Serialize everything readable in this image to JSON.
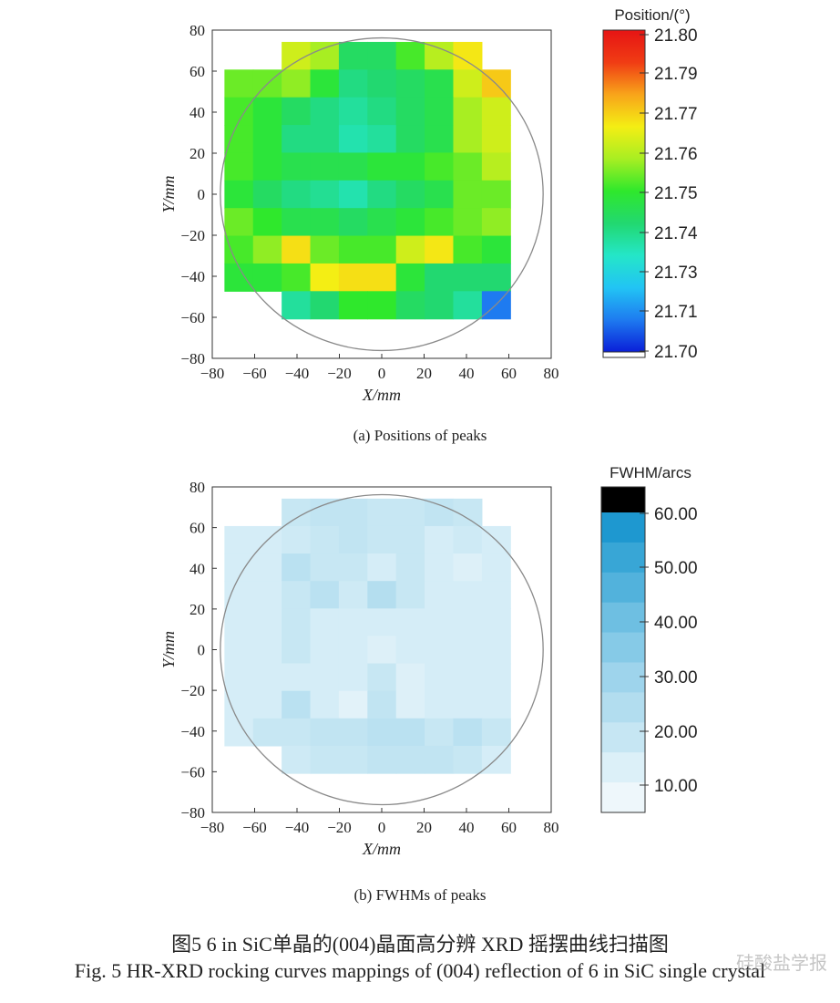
{
  "figure": {
    "caption_a": "(a) Positions of peaks",
    "caption_b": "(b) FWHMs of peaks",
    "caption_cn": "图5  6 in SiC单晶的(004)晶面高分辨 XRD 摇摆曲线扫描图",
    "caption_en": "Fig. 5   HR-XRD rocking curves mappings of (004) reflection of 6 in SiC single crystal",
    "watermark": "硅酸盐学报"
  },
  "chart_data": [
    {
      "type": "heatmap",
      "title": "",
      "xlabel": "X/mm",
      "ylabel": "Y/mm",
      "xlim": [
        -80,
        80
      ],
      "ylim": [
        -80,
        80
      ],
      "xticks": [
        "−80",
        "−60",
        "−40",
        "−20",
        "0",
        "20",
        "40",
        "60",
        "80"
      ],
      "yticks": [
        "80",
        "60",
        "40",
        "20",
        "0",
        "−20",
        "−40",
        "−60",
        "−80"
      ],
      "cell_size_mm": 13.5,
      "grid_x_start": -67.5,
      "grid_y_start": -67.5,
      "columns": 10,
      "rows": 10,
      "wafer_diameter_mm": 152.4,
      "colorbar": {
        "title": "Position/(°)",
        "labels": [
          "21.80",
          "21.79",
          "21.77",
          "21.76",
          "21.75",
          "21.74",
          "21.73",
          "21.71",
          "21.70"
        ],
        "range": [
          21.7,
          21.8
        ],
        "colors": [
          "#0a1fd8",
          "#1e7bf0",
          "#22c4f4",
          "#24e6c8",
          "#22d870",
          "#2fe82c",
          "#a8ee22",
          "#f4ee14",
          "#f8a41a",
          "#f03c14",
          "#e61414"
        ]
      },
      "values": [
        [
          null,
          null,
          21.765,
          21.76,
          21.742,
          21.742,
          21.752,
          21.762,
          21.771,
          null
        ],
        [
          21.755,
          21.755,
          21.758,
          21.748,
          21.738,
          21.74,
          21.742,
          21.745,
          21.765,
          21.775
        ],
        [
          21.752,
          21.748,
          21.742,
          21.738,
          21.735,
          21.738,
          21.742,
          21.745,
          21.76,
          21.765
        ],
        [
          21.752,
          21.748,
          21.738,
          21.738,
          21.733,
          21.735,
          21.742,
          21.745,
          21.76,
          21.765
        ],
        [
          21.752,
          21.748,
          21.745,
          21.745,
          21.745,
          21.748,
          21.748,
          21.752,
          21.755,
          21.762
        ],
        [
          21.748,
          21.742,
          21.738,
          21.736,
          21.733,
          21.738,
          21.742,
          21.745,
          21.755,
          21.755
        ],
        [
          21.755,
          21.75,
          21.745,
          21.745,
          21.742,
          21.745,
          21.748,
          21.752,
          21.755,
          21.758
        ],
        [
          21.752,
          21.758,
          21.772,
          21.755,
          21.752,
          21.752,
          21.765,
          21.771,
          21.752,
          21.748
        ],
        [
          21.748,
          21.748,
          21.752,
          21.77,
          21.772,
          21.772,
          21.748,
          21.74,
          21.74,
          21.74
        ],
        [
          null,
          null,
          21.735,
          21.74,
          21.75,
          21.75,
          21.742,
          21.74,
          21.735,
          21.71
        ]
      ]
    },
    {
      "type": "heatmap",
      "title": "",
      "xlabel": "X/mm",
      "ylabel": "Y/mm",
      "xlim": [
        -80,
        80
      ],
      "ylim": [
        -80,
        80
      ],
      "xticks": [
        "−80",
        "−60",
        "−40",
        "−20",
        "0",
        "20",
        "40",
        "60",
        "80"
      ],
      "yticks": [
        "80",
        "60",
        "40",
        "20",
        "0",
        "−20",
        "−40",
        "−60",
        "−80"
      ],
      "cell_size_mm": 13.5,
      "grid_x_start": -67.5,
      "grid_y_start": -67.5,
      "columns": 10,
      "rows": 10,
      "wafer_diameter_mm": 152.4,
      "colorbar": {
        "title": "FWHM/arcs",
        "labels": [
          "60.00",
          "50.00",
          "40.00",
          "30.00",
          "20.00",
          "10.00"
        ],
        "range": [
          10,
          60
        ],
        "colors": [
          "#eef7fb",
          "#dcf0f8",
          "#c6e6f3",
          "#b2ddef",
          "#9ed4ec",
          "#86cae7",
          "#6ebfe2",
          "#52b2dc",
          "#38a6d6",
          "#1e98d0",
          "#000000"
        ]
      },
      "values": [
        [
          null,
          null,
          22,
          24,
          24,
          22,
          22,
          24,
          22,
          null
        ],
        [
          18,
          18,
          20,
          22,
          24,
          22,
          22,
          18,
          20,
          18
        ],
        [
          18,
          18,
          26,
          22,
          22,
          18,
          22,
          18,
          16,
          18
        ],
        [
          18,
          18,
          22,
          26,
          20,
          28,
          22,
          18,
          18,
          18
        ],
        [
          18,
          18,
          22,
          18,
          18,
          18,
          18,
          18,
          18,
          18
        ],
        [
          18,
          18,
          22,
          18,
          18,
          16,
          18,
          18,
          18,
          18
        ],
        [
          18,
          18,
          18,
          18,
          18,
          22,
          16,
          18,
          18,
          18
        ],
        [
          18,
          18,
          26,
          18,
          14,
          24,
          16,
          18,
          18,
          18
        ],
        [
          18,
          22,
          22,
          24,
          24,
          26,
          26,
          22,
          26,
          22
        ],
        [
          null,
          null,
          20,
          22,
          22,
          24,
          24,
          24,
          22,
          18
        ]
      ]
    }
  ]
}
